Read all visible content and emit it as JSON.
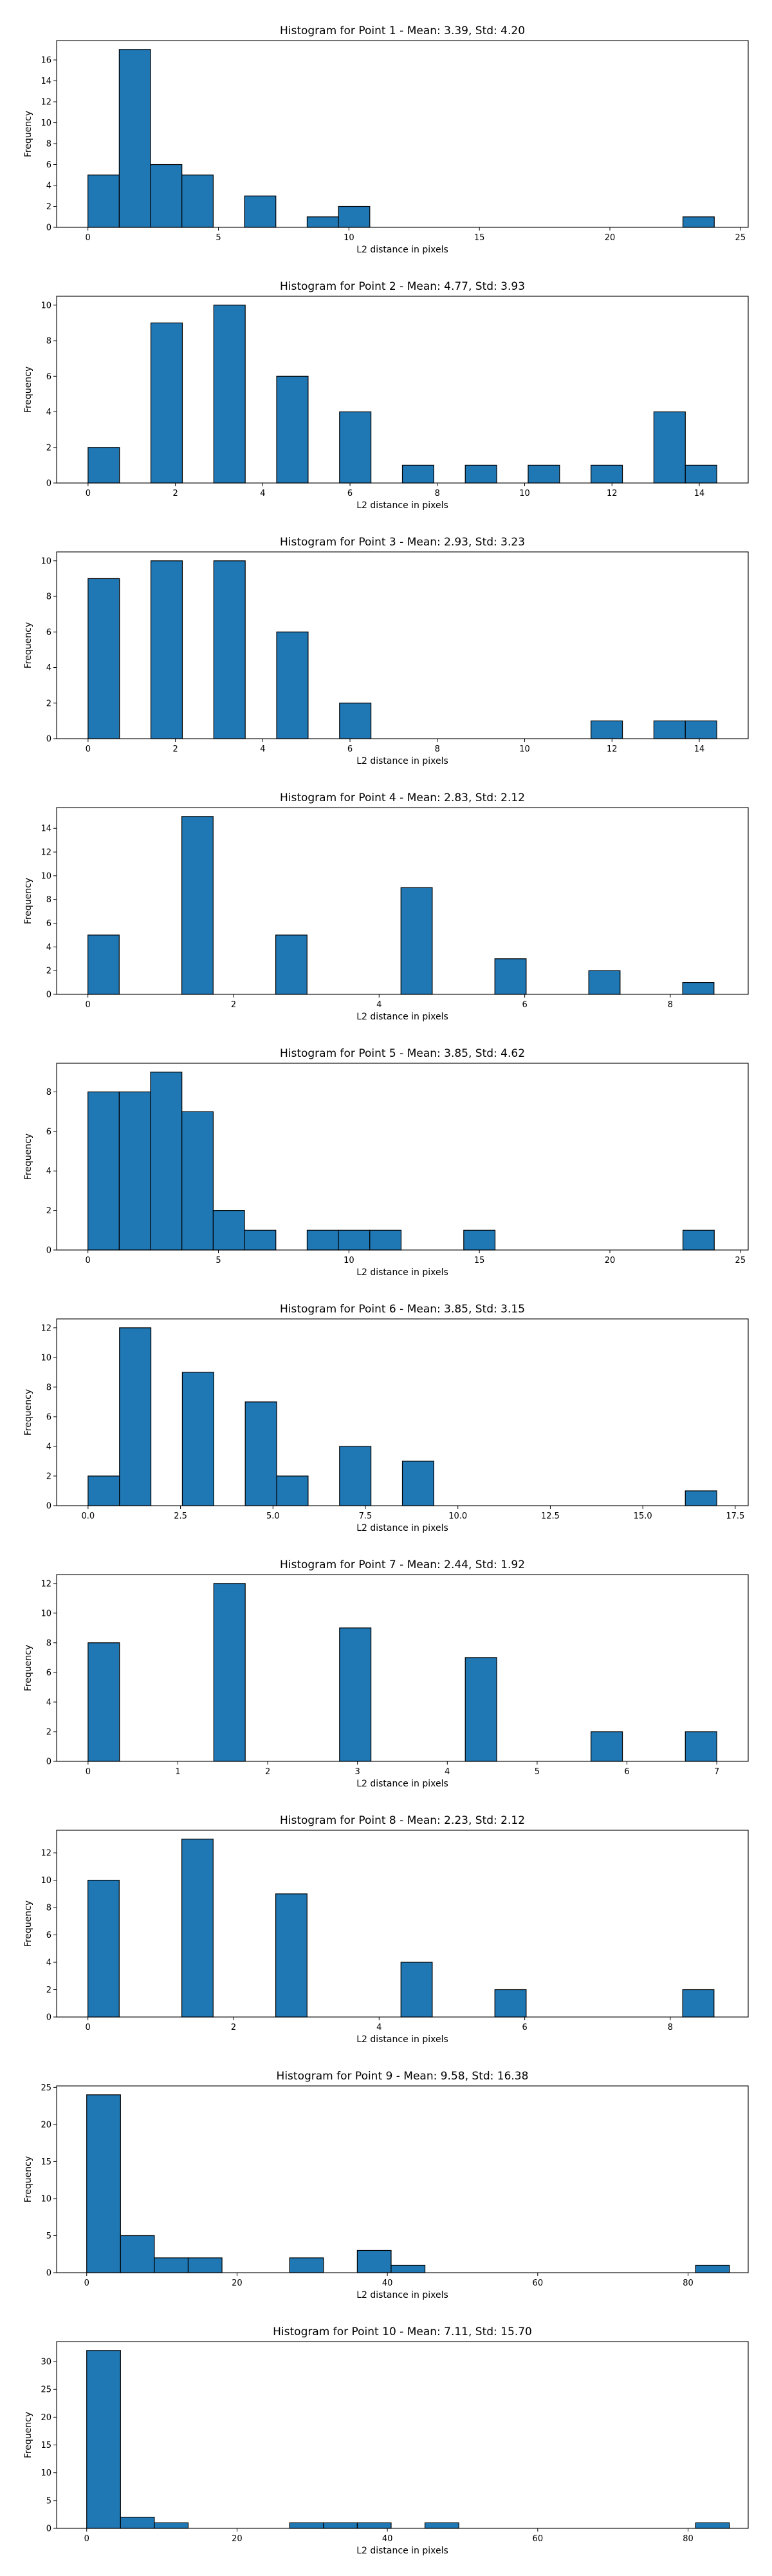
{
  "chart_data": [
    {
      "type": "bar",
      "title": "Histogram for Point 1 - Mean: 3.39, Std: 4.20",
      "xlabel": "L2 distance in pixels",
      "ylabel": "Frequency",
      "grid": false,
      "xlim": [
        -1.2,
        25.3
      ],
      "ylim": [
        0,
        17.85
      ],
      "xticks": [
        0,
        5,
        10,
        15,
        20,
        25
      ],
      "xtick_labels": [
        "0",
        "5",
        "10",
        "15",
        "20",
        "25"
      ],
      "yticks": [
        0,
        2,
        4,
        6,
        8,
        10,
        12,
        14,
        16
      ],
      "ytick_labels": [
        "0",
        "2",
        "4",
        "6",
        "8",
        "10",
        "12",
        "14",
        "16"
      ],
      "bins": [
        {
          "x0": 0.0,
          "x1": 1.2,
          "count": 5
        },
        {
          "x0": 1.2,
          "x1": 2.4,
          "count": 17
        },
        {
          "x0": 2.4,
          "x1": 3.6,
          "count": 6
        },
        {
          "x0": 3.6,
          "x1": 4.8,
          "count": 5
        },
        {
          "x0": 6.0,
          "x1": 7.2,
          "count": 3
        },
        {
          "x0": 8.4,
          "x1": 9.6,
          "count": 1
        },
        {
          "x0": 9.6,
          "x1": 10.8,
          "count": 2
        },
        {
          "x0": 22.8,
          "x1": 24.0,
          "count": 1
        }
      ]
    },
    {
      "type": "bar",
      "title": "Histogram for Point 2 - Mean: 4.77, Std: 3.93",
      "xlabel": "L2 distance in pixels",
      "ylabel": "Frequency",
      "grid": false,
      "xlim": [
        -0.72,
        15.12
      ],
      "ylim": [
        0,
        10.5
      ],
      "xticks": [
        0,
        2,
        4,
        6,
        8,
        10,
        12,
        14
      ],
      "xtick_labels": [
        "0",
        "2",
        "4",
        "6",
        "8",
        "10",
        "12",
        "14"
      ],
      "yticks": [
        0,
        2,
        4,
        6,
        8,
        10
      ],
      "ytick_labels": [
        "0",
        "2",
        "4",
        "6",
        "8",
        "10"
      ],
      "bins": [
        {
          "x0": 0.0,
          "x1": 0.72,
          "count": 2
        },
        {
          "x0": 1.44,
          "x1": 2.16,
          "count": 9
        },
        {
          "x0": 2.88,
          "x1": 3.6,
          "count": 10
        },
        {
          "x0": 4.32,
          "x1": 5.04,
          "count": 6
        },
        {
          "x0": 5.76,
          "x1": 6.48,
          "count": 4
        },
        {
          "x0": 7.2,
          "x1": 7.92,
          "count": 1
        },
        {
          "x0": 8.64,
          "x1": 9.36,
          "count": 1
        },
        {
          "x0": 10.08,
          "x1": 10.8,
          "count": 1
        },
        {
          "x0": 11.52,
          "x1": 12.24,
          "count": 1
        },
        {
          "x0": 12.96,
          "x1": 13.68,
          "count": 4
        },
        {
          "x0": 13.68,
          "x1": 14.4,
          "count": 1
        }
      ]
    },
    {
      "type": "bar",
      "title": "Histogram for Point 3 - Mean: 2.93, Std: 3.23",
      "xlabel": "L2 distance in pixels",
      "ylabel": "Frequency",
      "grid": false,
      "xlim": [
        -0.72,
        15.12
      ],
      "ylim": [
        0,
        10.5
      ],
      "xticks": [
        0,
        2,
        4,
        6,
        8,
        10,
        12,
        14
      ],
      "xtick_labels": [
        "0",
        "2",
        "4",
        "6",
        "8",
        "10",
        "12",
        "14"
      ],
      "yticks": [
        0,
        2,
        4,
        6,
        8,
        10
      ],
      "ytick_labels": [
        "0",
        "2",
        "4",
        "6",
        "8",
        "10"
      ],
      "bins": [
        {
          "x0": 0.0,
          "x1": 0.72,
          "count": 9
        },
        {
          "x0": 1.44,
          "x1": 2.16,
          "count": 10
        },
        {
          "x0": 2.88,
          "x1": 3.6,
          "count": 10
        },
        {
          "x0": 4.32,
          "x1": 5.04,
          "count": 6
        },
        {
          "x0": 5.76,
          "x1": 6.48,
          "count": 2
        },
        {
          "x0": 11.52,
          "x1": 12.24,
          "count": 1
        },
        {
          "x0": 12.96,
          "x1": 13.68,
          "count": 1
        },
        {
          "x0": 13.68,
          "x1": 14.4,
          "count": 1
        }
      ]
    },
    {
      "type": "bar",
      "title": "Histogram for Point 4 - Mean: 2.83, Std: 2.12",
      "xlabel": "L2 distance in pixels",
      "ylabel": "Frequency",
      "grid": false,
      "xlim": [
        -0.43,
        9.07
      ],
      "ylim": [
        0,
        15.75
      ],
      "xticks": [
        0,
        2,
        4,
        6,
        8
      ],
      "xtick_labels": [
        "0",
        "2",
        "4",
        "6",
        "8"
      ],
      "yticks": [
        0,
        2,
        4,
        6,
        8,
        10,
        12,
        14
      ],
      "ytick_labels": [
        "0",
        "2",
        "4",
        "6",
        "8",
        "10",
        "12",
        "14"
      ],
      "bins": [
        {
          "x0": 0.0,
          "x1": 0.43,
          "count": 5
        },
        {
          "x0": 1.29,
          "x1": 1.72,
          "count": 15
        },
        {
          "x0": 2.58,
          "x1": 3.01,
          "count": 5
        },
        {
          "x0": 4.3,
          "x1": 4.73,
          "count": 9
        },
        {
          "x0": 5.59,
          "x1": 6.02,
          "count": 3
        },
        {
          "x0": 6.88,
          "x1": 7.31,
          "count": 2
        },
        {
          "x0": 8.17,
          "x1": 8.6,
          "count": 1
        }
      ]
    },
    {
      "type": "bar",
      "title": "Histogram for Point 5 - Mean: 3.85, Std: 4.62",
      "xlabel": "L2 distance in pixels",
      "ylabel": "Frequency",
      "grid": false,
      "xlim": [
        -1.2,
        25.3
      ],
      "ylim": [
        0,
        9.45
      ],
      "xticks": [
        0,
        5,
        10,
        15,
        20,
        25
      ],
      "xtick_labels": [
        "0",
        "5",
        "10",
        "15",
        "20",
        "25"
      ],
      "yticks": [
        0,
        2,
        4,
        6,
        8
      ],
      "ytick_labels": [
        "0",
        "2",
        "4",
        "6",
        "8"
      ],
      "bins": [
        {
          "x0": 0.0,
          "x1": 1.2,
          "count": 8
        },
        {
          "x0": 1.2,
          "x1": 2.4,
          "count": 8
        },
        {
          "x0": 2.4,
          "x1": 3.6,
          "count": 9
        },
        {
          "x0": 3.6,
          "x1": 4.8,
          "count": 7
        },
        {
          "x0": 4.8,
          "x1": 6.0,
          "count": 2
        },
        {
          "x0": 6.0,
          "x1": 7.2,
          "count": 1
        },
        {
          "x0": 8.4,
          "x1": 9.6,
          "count": 1
        },
        {
          "x0": 9.6,
          "x1": 10.8,
          "count": 1
        },
        {
          "x0": 10.8,
          "x1": 12.0,
          "count": 1
        },
        {
          "x0": 14.4,
          "x1": 15.6,
          "count": 1
        },
        {
          "x0": 22.8,
          "x1": 24.0,
          "count": 1
        }
      ]
    },
    {
      "type": "bar",
      "title": "Histogram for Point 6 - Mean: 3.85, Std: 3.15",
      "xlabel": "L2 distance in pixels",
      "ylabel": "Frequency",
      "grid": false,
      "xlim": [
        -0.85,
        17.85
      ],
      "ylim": [
        0,
        12.6
      ],
      "xticks": [
        0.0,
        2.5,
        5.0,
        7.5,
        10.0,
        12.5,
        15.0,
        17.5
      ],
      "xtick_labels": [
        "0.0",
        "2.5",
        "5.0",
        "7.5",
        "10.0",
        "12.5",
        "15.0",
        "17.5"
      ],
      "yticks": [
        0,
        2,
        4,
        6,
        8,
        10,
        12
      ],
      "ytick_labels": [
        "0",
        "2",
        "4",
        "6",
        "8",
        "10",
        "12"
      ],
      "bins": [
        {
          "x0": 0.0,
          "x1": 0.85,
          "count": 2
        },
        {
          "x0": 0.85,
          "x1": 1.7,
          "count": 12
        },
        {
          "x0": 2.55,
          "x1": 3.4,
          "count": 9
        },
        {
          "x0": 4.25,
          "x1": 5.1,
          "count": 7
        },
        {
          "x0": 5.1,
          "x1": 5.95,
          "count": 2
        },
        {
          "x0": 6.8,
          "x1": 7.65,
          "count": 4
        },
        {
          "x0": 8.5,
          "x1": 9.35,
          "count": 3
        },
        {
          "x0": 16.15,
          "x1": 17.0,
          "count": 1
        }
      ]
    },
    {
      "type": "bar",
      "title": "Histogram for Point 7 - Mean: 2.44, Std: 1.92",
      "xlabel": "L2 distance in pixels",
      "ylabel": "Frequency",
      "grid": false,
      "xlim": [
        -0.35,
        7.35
      ],
      "ylim": [
        0,
        12.6
      ],
      "xticks": [
        0,
        1,
        2,
        3,
        4,
        5,
        6,
        7
      ],
      "xtick_labels": [
        "0",
        "1",
        "2",
        "3",
        "4",
        "5",
        "6",
        "7"
      ],
      "yticks": [
        0,
        2,
        4,
        6,
        8,
        10,
        12
      ],
      "ytick_labels": [
        "0",
        "2",
        "4",
        "6",
        "8",
        "10",
        "12"
      ],
      "bins": [
        {
          "x0": 0.0,
          "x1": 0.35,
          "count": 8
        },
        {
          "x0": 1.4,
          "x1": 1.75,
          "count": 12
        },
        {
          "x0": 2.8,
          "x1": 3.15,
          "count": 9
        },
        {
          "x0": 4.2,
          "x1": 4.55,
          "count": 7
        },
        {
          "x0": 5.6,
          "x1": 5.95,
          "count": 2
        },
        {
          "x0": 6.65,
          "x1": 7.0,
          "count": 2
        }
      ]
    },
    {
      "type": "bar",
      "title": "Histogram for Point 8 - Mean: 2.23, Std: 2.12",
      "xlabel": "L2 distance in pixels",
      "ylabel": "Frequency",
      "grid": false,
      "xlim": [
        -0.43,
        9.07
      ],
      "ylim": [
        0,
        13.65
      ],
      "xticks": [
        0,
        2,
        4,
        6,
        8
      ],
      "xtick_labels": [
        "0",
        "2",
        "4",
        "6",
        "8"
      ],
      "yticks": [
        0,
        2,
        4,
        6,
        8,
        10,
        12
      ],
      "ytick_labels": [
        "0",
        "2",
        "4",
        "6",
        "8",
        "10",
        "12"
      ],
      "bins": [
        {
          "x0": 0.0,
          "x1": 0.43,
          "count": 10
        },
        {
          "x0": 1.29,
          "x1": 1.72,
          "count": 13
        },
        {
          "x0": 2.58,
          "x1": 3.01,
          "count": 9
        },
        {
          "x0": 4.3,
          "x1": 4.73,
          "count": 4
        },
        {
          "x0": 5.59,
          "x1": 6.02,
          "count": 2
        },
        {
          "x0": 8.17,
          "x1": 8.6,
          "count": 2
        }
      ]
    },
    {
      "type": "bar",
      "title": "Histogram for Point 9 - Mean: 9.58, Std: 16.38",
      "xlabel": "L2 distance in pixels",
      "ylabel": "Frequency",
      "grid": false,
      "xlim": [
        -4.0,
        88.0
      ],
      "ylim": [
        0,
        25.2
      ],
      "xticks": [
        0,
        20,
        40,
        60,
        80
      ],
      "xtick_labels": [
        "0",
        "20",
        "40",
        "60",
        "80"
      ],
      "yticks": [
        0,
        5,
        10,
        15,
        20,
        25
      ],
      "ytick_labels": [
        "0",
        "5",
        "10",
        "15",
        "20",
        "25"
      ],
      "bins": [
        {
          "x0": 0.0,
          "x1": 4.5,
          "count": 24
        },
        {
          "x0": 4.5,
          "x1": 9.0,
          "count": 5
        },
        {
          "x0": 9.0,
          "x1": 13.5,
          "count": 2
        },
        {
          "x0": 13.5,
          "x1": 18.0,
          "count": 2
        },
        {
          "x0": 27.0,
          "x1": 31.5,
          "count": 2
        },
        {
          "x0": 36.0,
          "x1": 40.5,
          "count": 3
        },
        {
          "x0": 40.5,
          "x1": 45.0,
          "count": 1
        },
        {
          "x0": 81.0,
          "x1": 85.5,
          "count": 1
        }
      ]
    },
    {
      "type": "bar",
      "title": "Histogram for Point 10 - Mean: 7.11, Std: 15.70",
      "xlabel": "L2 distance in pixels",
      "ylabel": "Frequency",
      "grid": false,
      "xlim": [
        -4.0,
        88.0
      ],
      "ylim": [
        0,
        33.6
      ],
      "xticks": [
        0,
        20,
        40,
        60,
        80
      ],
      "xtick_labels": [
        "0",
        "20",
        "40",
        "60",
        "80"
      ],
      "yticks": [
        0,
        5,
        10,
        15,
        20,
        25,
        30
      ],
      "ytick_labels": [
        "0",
        "5",
        "10",
        "15",
        "20",
        "25",
        "30"
      ],
      "bins": [
        {
          "x0": 0.0,
          "x1": 4.5,
          "count": 32
        },
        {
          "x0": 4.5,
          "x1": 9.0,
          "count": 2
        },
        {
          "x0": 9.0,
          "x1": 13.5,
          "count": 1
        },
        {
          "x0": 27.0,
          "x1": 31.5,
          "count": 1
        },
        {
          "x0": 31.5,
          "x1": 36.0,
          "count": 1
        },
        {
          "x0": 36.0,
          "x1": 40.5,
          "count": 1
        },
        {
          "x0": 45.0,
          "x1": 49.5,
          "count": 1
        },
        {
          "x0": 81.0,
          "x1": 85.5,
          "count": 1
        }
      ]
    }
  ]
}
